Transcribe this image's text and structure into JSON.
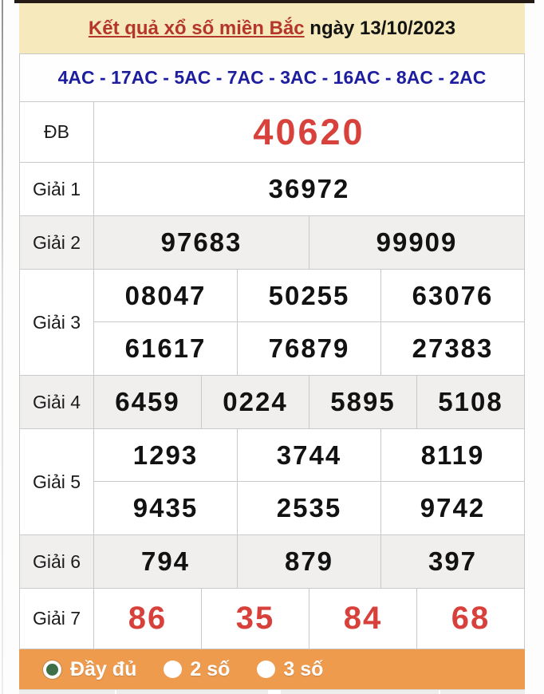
{
  "header": {
    "title_link": "Kết quả xổ số miền Bắc",
    "title_date": " ngày 13/10/2023"
  },
  "ac_line": "4AC - 17AC - 5AC - 7AC - 3AC - 16AC - 8AC - 2AC",
  "results": {
    "rows": [
      {
        "label": "ĐB",
        "highlight": "special",
        "shaded": false,
        "groups": [
          [
            "40620"
          ]
        ]
      },
      {
        "label": "Giải 1",
        "highlight": "",
        "shaded": false,
        "groups": [
          [
            "36972"
          ]
        ]
      },
      {
        "label": "Giải 2",
        "highlight": "",
        "shaded": true,
        "groups": [
          [
            "97683",
            "99909"
          ]
        ]
      },
      {
        "label": "Giải 3",
        "highlight": "",
        "shaded": false,
        "groups": [
          [
            "08047",
            "50255",
            "63076"
          ],
          [
            "61617",
            "76879",
            "27383"
          ]
        ]
      },
      {
        "label": "Giải 4",
        "highlight": "",
        "shaded": true,
        "groups": [
          [
            "6459",
            "0224",
            "5895",
            "5108"
          ]
        ]
      },
      {
        "label": "Giải 5",
        "highlight": "",
        "shaded": false,
        "groups": [
          [
            "1293",
            "3744",
            "8119"
          ],
          [
            "9435",
            "2535",
            "9742"
          ]
        ]
      },
      {
        "label": "Giải 6",
        "highlight": "",
        "shaded": true,
        "groups": [
          [
            "794",
            "879",
            "397"
          ]
        ]
      },
      {
        "label": "Giải 7",
        "highlight": "red7",
        "shaded": false,
        "groups": [
          [
            "86",
            "35",
            "84",
            "68"
          ]
        ]
      }
    ]
  },
  "filter_bar": {
    "options": [
      {
        "label": "Đầy đủ",
        "selected": true
      },
      {
        "label": "2 số",
        "selected": false
      },
      {
        "label": "3 số",
        "selected": false
      }
    ]
  },
  "colors": {
    "header_bg": "#f6e9bb",
    "title_red": "#b5362a",
    "ac_navy": "#1d1d9f",
    "number_black": "#121212",
    "number_red": "#d8413b",
    "shaded_row": "#f0efee",
    "filter_orange": "#ef9b4e",
    "radio_green": "#3e6f49",
    "border_gray": "#c9c9c9"
  }
}
